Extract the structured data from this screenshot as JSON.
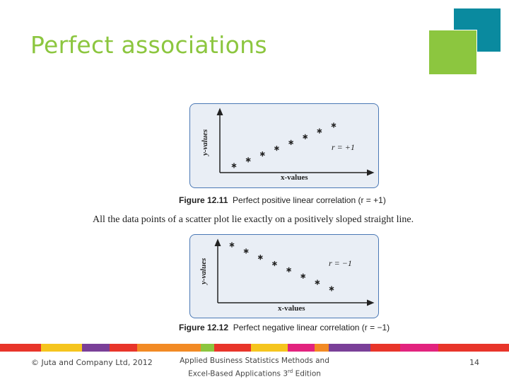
{
  "slide": {
    "title": "Perfect associations",
    "accent_colors": {
      "title": "#8cc63f",
      "teal_square": "#0a8a9f",
      "green_square": "#8cc63f",
      "panel_border": "#4a78b5"
    }
  },
  "figure1": {
    "ylabel": "y-values",
    "xlabel": "x-values",
    "r_label": "r = +1",
    "caption_number": "Figure 12.11",
    "caption_text": "Perfect positive linear correlation (r = +1)"
  },
  "description": "All the data points of a scatter plot lie exactly on a positively sloped straight line.",
  "figure2": {
    "ylabel": "y-values",
    "xlabel": "x-values",
    "r_label": "r = −1",
    "caption_number": "Figure 12.12",
    "caption_text": "Perfect negative linear correlation (r = −1)"
  },
  "chart_data": [
    {
      "type": "scatter",
      "xlabel": "x-values",
      "ylabel": "y-values",
      "annotation": "r = +1",
      "x": [
        1,
        2,
        3,
        4,
        5,
        6,
        7,
        8
      ],
      "y": [
        1,
        2,
        3,
        4,
        5,
        6,
        7,
        8
      ],
      "marker": "star"
    },
    {
      "type": "scatter",
      "xlabel": "x-values",
      "ylabel": "y-values",
      "annotation": "r = −1",
      "x": [
        1,
        2,
        3,
        4,
        5,
        6,
        7,
        8
      ],
      "y": [
        8,
        7,
        6,
        5,
        4,
        3,
        2,
        1
      ],
      "marker": "star"
    }
  ],
  "footer": {
    "copyright": "© Juta and Company Ltd, 2012",
    "book_line1": "Applied Business Statistics Methods and",
    "book_line2_prefix": "Excel-Based Applications 3",
    "book_line2_sup": "rd",
    "book_line2_suffix": " Edition",
    "page_number": "14"
  },
  "stripe_colors": [
    "#e8352a",
    "#f5c51e",
    "#7a3f98",
    "#e8352a",
    "#f28a24",
    "#8cc63f",
    "#e8352a",
    "#f5c51e",
    "#e2237e",
    "#f28a24",
    "#7a3f98",
    "#e8352a",
    "#e2237e"
  ]
}
